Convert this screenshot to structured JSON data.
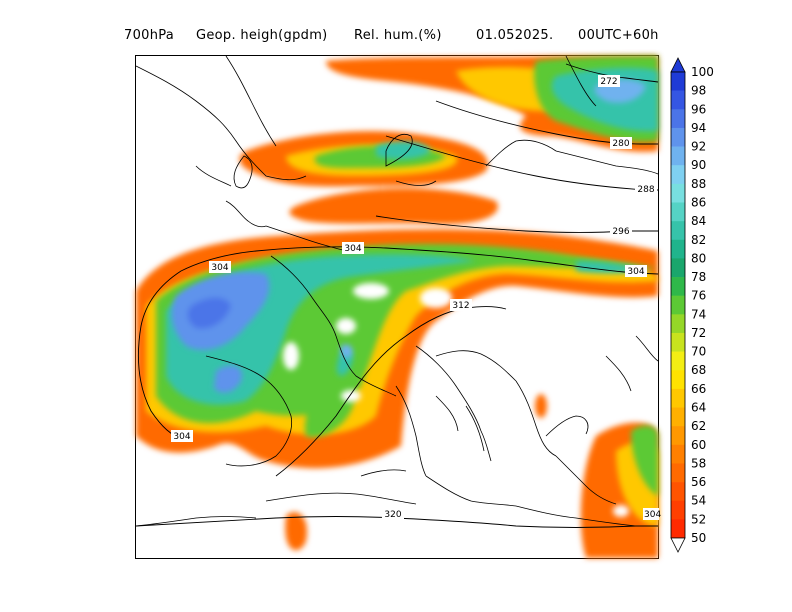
{
  "header": {
    "level": "700hPa",
    "field1": "Geop. heigh(gpdm)",
    "field2": "Rel. hum.(%)",
    "date": "01.052025.",
    "run": "00UTC+60h"
  },
  "map": {
    "contours": [
      {
        "label": "272"
      },
      {
        "label": "280"
      },
      {
        "label": "288"
      },
      {
        "label": "296"
      },
      {
        "label": "304"
      },
      {
        "label": "312"
      },
      {
        "label": "320"
      }
    ],
    "contour_label_texts": [
      "272",
      "280",
      "288",
      "296",
      "304",
      "304",
      "304",
      "304",
      "312",
      "320",
      "304"
    ]
  },
  "legend": {
    "min": 50,
    "max": 100,
    "step": 2,
    "labels": [
      "100",
      "98",
      "96",
      "94",
      "92",
      "90",
      "88",
      "86",
      "84",
      "82",
      "80",
      "78",
      "76",
      "74",
      "72",
      "70",
      "68",
      "66",
      "64",
      "62",
      "60",
      "58",
      "56",
      "54",
      "52",
      "50"
    ],
    "colors": [
      "#1f3bd6",
      "#3556e3",
      "#4b74e8",
      "#5f93ec",
      "#6fb2ef",
      "#7fd0f1",
      "#78dfe0",
      "#55d3c5",
      "#36c3aa",
      "#20b48c",
      "#1aa66c",
      "#2fb84a",
      "#5cc935",
      "#95d728",
      "#c8e31e",
      "#f3ee14",
      "#ffe200",
      "#ffc800",
      "#ffb000",
      "#ff9800",
      "#ff8000",
      "#ff6a00",
      "#ff5400",
      "#ff3f00",
      "#ff2a00"
    ]
  }
}
